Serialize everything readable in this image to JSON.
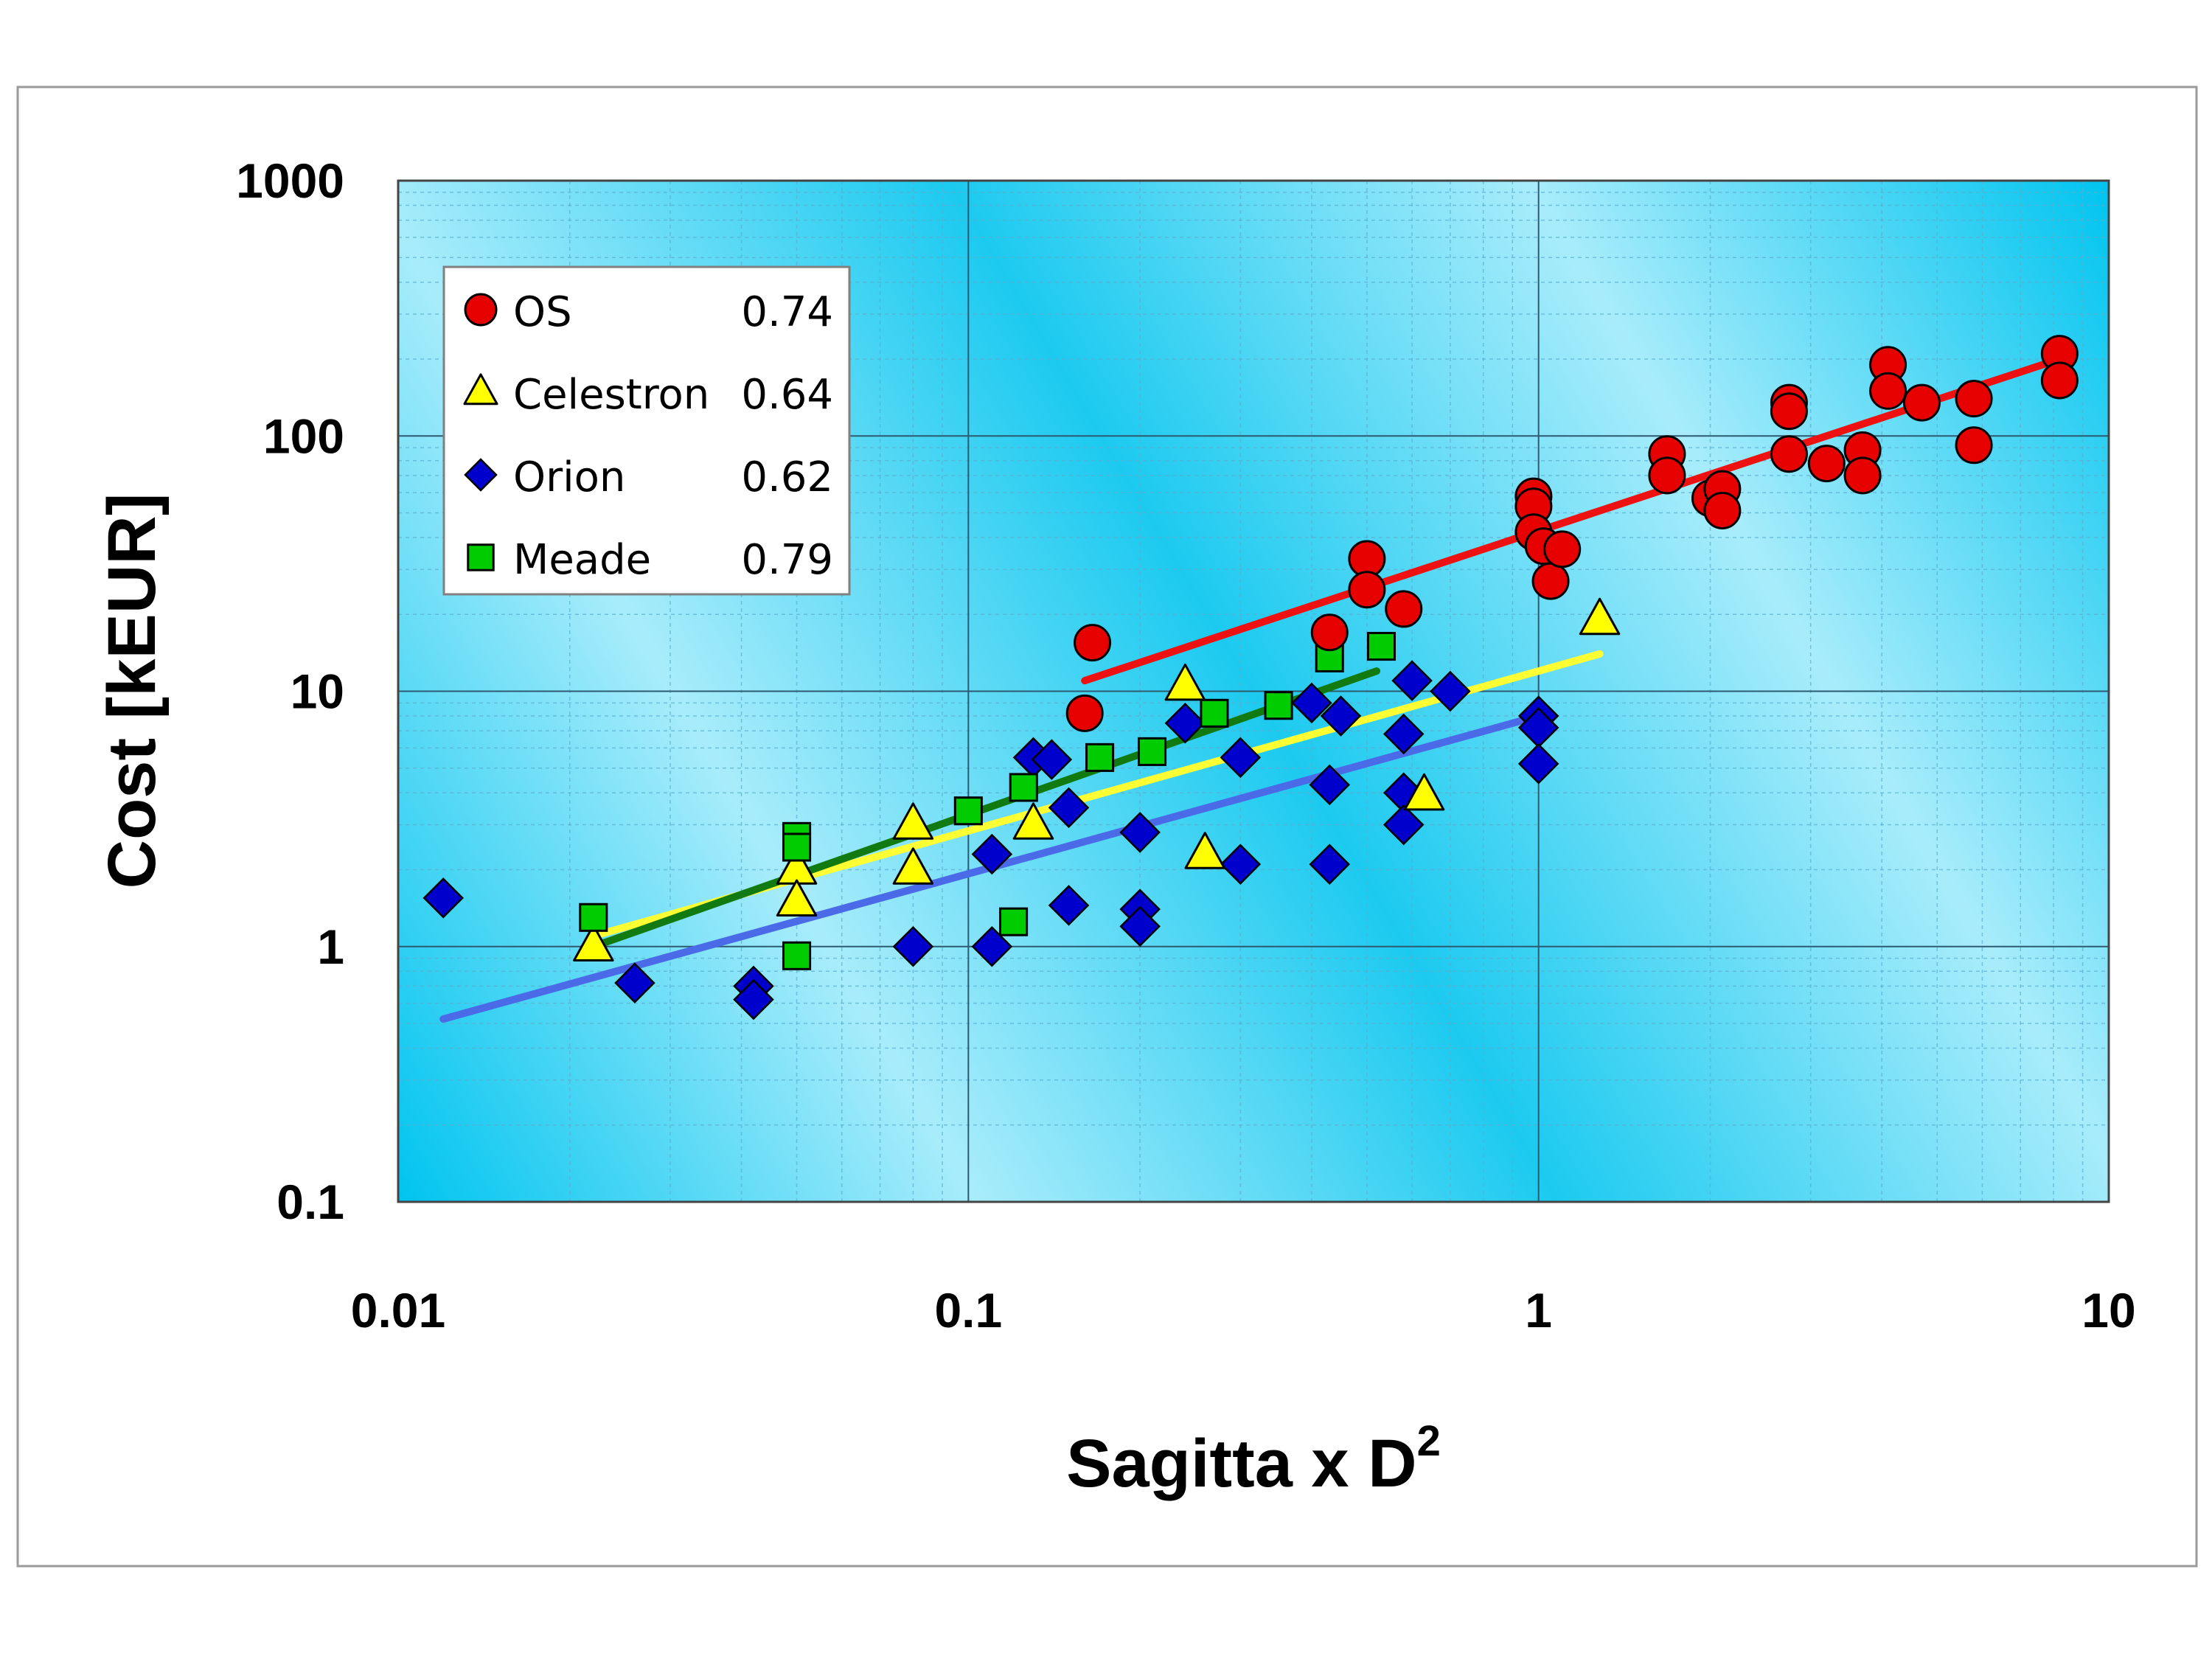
{
  "chart_data": {
    "type": "scatter",
    "xlabel": "Sagitta x D",
    "xlabel_sup": "2",
    "ylabel": "Cost [kEUR]",
    "xscale": "log",
    "yscale": "log",
    "xlim": [
      0.01,
      10
    ],
    "ylim": [
      0.1,
      1000
    ],
    "xticks": [
      "0.01",
      "0.1",
      "1",
      "10"
    ],
    "yticks": [
      "0.1",
      "1",
      "10",
      "100",
      "1000"
    ],
    "grid": true,
    "legend_position": "top-left",
    "colors": {
      "OS": "#e60000",
      "Celestron": "#ffff00",
      "Orion": "#0000cc",
      "Meade": "#00cc00",
      "OS_fit": "#ee1111",
      "Celestron_fit": "#ffff33",
      "Orion_fit": "#4a6ae8",
      "Meade_fit": "#117a11",
      "plot_background": "#00c8f0"
    },
    "series": [
      {
        "name": "OS",
        "value": "0.74",
        "marker": "circle",
        "points": [
          [
            0.165,
            15.5
          ],
          [
            0.16,
            8.2
          ],
          [
            0.43,
            17
          ],
          [
            0.5,
            33
          ],
          [
            0.5,
            25
          ],
          [
            0.58,
            21
          ],
          [
            0.98,
            58
          ],
          [
            0.98,
            53
          ],
          [
            0.98,
            42
          ],
          [
            1.02,
            37
          ],
          [
            1.05,
            27
          ],
          [
            1.1,
            36
          ],
          [
            1.68,
            85
          ],
          [
            1.68,
            70
          ],
          [
            2.0,
            57
          ],
          [
            2.1,
            62
          ],
          [
            2.1,
            51
          ],
          [
            2.75,
            135
          ],
          [
            2.75,
            125
          ],
          [
            2.75,
            85
          ],
          [
            3.2,
            78
          ],
          [
            3.7,
            88
          ],
          [
            3.7,
            70
          ],
          [
            4.1,
            190
          ],
          [
            4.1,
            150
          ],
          [
            4.7,
            135
          ],
          [
            5.8,
            140
          ],
          [
            5.8,
            92
          ],
          [
            8.2,
            210
          ],
          [
            8.2,
            165
          ]
        ]
      },
      {
        "name": "Celestron",
        "value": "0.64",
        "marker": "triangle",
        "points": [
          [
            0.022,
            1.0
          ],
          [
            0.05,
            2.0
          ],
          [
            0.05,
            1.5
          ],
          [
            0.08,
            3.0
          ],
          [
            0.08,
            2.0
          ],
          [
            0.13,
            3.0
          ],
          [
            0.24,
            10.5
          ],
          [
            0.26,
            2.3
          ],
          [
            0.63,
            3.9
          ],
          [
            1.28,
            19
          ]
        ]
      },
      {
        "name": "Orion",
        "value": "0.62",
        "marker": "diamond",
        "points": [
          [
            0.012,
            1.55
          ],
          [
            0.026,
            0.72
          ],
          [
            0.042,
            0.7
          ],
          [
            0.042,
            0.62
          ],
          [
            0.08,
            1.0
          ],
          [
            0.11,
            1.0
          ],
          [
            0.11,
            2.3
          ],
          [
            0.13,
            5.5
          ],
          [
            0.14,
            5.4
          ],
          [
            0.15,
            1.45
          ],
          [
            0.15,
            3.5
          ],
          [
            0.2,
            2.8
          ],
          [
            0.2,
            1.4
          ],
          [
            0.2,
            1.2
          ],
          [
            0.24,
            7.5
          ],
          [
            0.3,
            5.5
          ],
          [
            0.3,
            2.1
          ],
          [
            0.4,
            9.0
          ],
          [
            0.43,
            4.3
          ],
          [
            0.43,
            2.1
          ],
          [
            0.45,
            8.0
          ],
          [
            0.58,
            6.8
          ],
          [
            0.58,
            4.0
          ],
          [
            0.58,
            3.0
          ],
          [
            0.6,
            11
          ],
          [
            0.7,
            10
          ],
          [
            1.0,
            8.0
          ],
          [
            1.0,
            7.2
          ],
          [
            1.0,
            5.2
          ]
        ]
      },
      {
        "name": "Meade",
        "value": "0.79",
        "marker": "square",
        "points": [
          [
            0.022,
            1.3
          ],
          [
            0.05,
            2.7
          ],
          [
            0.05,
            2.45
          ],
          [
            0.05,
            0.92
          ],
          [
            0.1,
            3.4
          ],
          [
            0.12,
            1.25
          ],
          [
            0.125,
            4.2
          ],
          [
            0.17,
            5.5
          ],
          [
            0.21,
            5.8
          ],
          [
            0.27,
            8.2
          ],
          [
            0.35,
            8.8
          ],
          [
            0.43,
            13.5
          ],
          [
            0.53,
            15
          ]
        ]
      }
    ],
    "fits": [
      {
        "series": "OS",
        "x": [
          0.16,
          8.2
        ],
        "y": [
          11,
          200
        ]
      },
      {
        "series": "Celestron",
        "x": [
          0.022,
          1.28
        ],
        "y": [
          1.1,
          14
        ]
      },
      {
        "series": "Orion",
        "x": [
          0.012,
          1.0
        ],
        "y": [
          0.52,
          8.0
        ]
      },
      {
        "series": "Meade",
        "x": [
          0.022,
          0.52
        ],
        "y": [
          1.0,
          12
        ]
      }
    ]
  }
}
